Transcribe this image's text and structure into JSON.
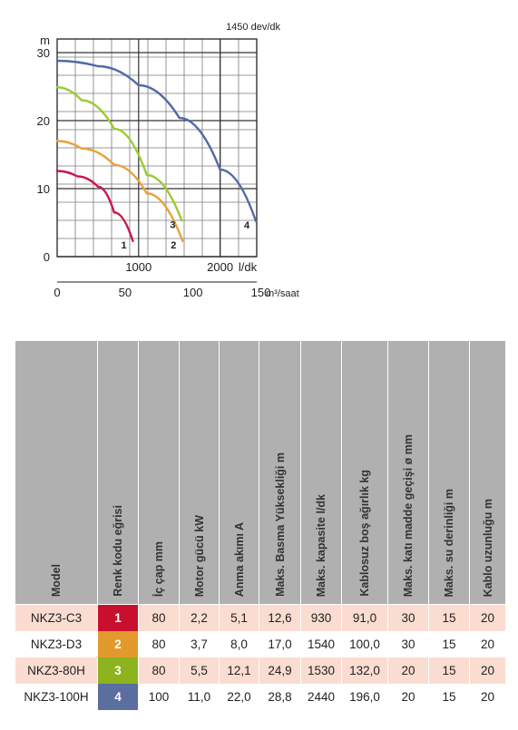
{
  "chart_data": {
    "type": "line",
    "title": "1450 dev/dk",
    "ylabel": "m",
    "xlabel_top": "l/dk",
    "xlabel_bottom": "m³/saat",
    "xlim": [
      0,
      2450
    ],
    "ylim": [
      0,
      32
    ],
    "x_ticks_top": [
      "1000",
      "2000"
    ],
    "x_tick_top_values": [
      1000,
      2000
    ],
    "x_ticks_bottom": [
      "0",
      "50",
      "100",
      "150"
    ],
    "x_tick_bottom_values": [
      0,
      833.33,
      1666.67,
      2500
    ],
    "y_ticks": [
      "0",
      "10",
      "20",
      "30"
    ],
    "y_tick_values": [
      0,
      10,
      20,
      30
    ],
    "grid": true,
    "series": [
      {
        "name": "1",
        "color": "#c8184a",
        "x": [
          0,
          250,
          500,
          700,
          930
        ],
        "y": [
          12.6,
          11.8,
          10.3,
          6.5,
          2.3
        ]
      },
      {
        "name": "2",
        "color": "#e8a23a",
        "x": [
          0,
          300,
          700,
          1100,
          1540
        ],
        "y": [
          17.0,
          15.9,
          13.5,
          9.3,
          2.3
        ]
      },
      {
        "name": "3",
        "color": "#9ccc32",
        "x": [
          0,
          300,
          700,
          1100,
          1530
        ],
        "y": [
          24.9,
          23.0,
          18.8,
          12.0,
          5.3
        ]
      },
      {
        "name": "4",
        "color": "#536aa7",
        "x": [
          0,
          500,
          1000,
          1500,
          2000,
          2440
        ],
        "y": [
          28.8,
          28.0,
          25.2,
          20.4,
          12.8,
          5.2
        ]
      }
    ]
  },
  "table": {
    "headers": [
      "Model",
      "Renk kodu eğrisi",
      "İç çap mm",
      "Motor gücü kW",
      "Anma akımı A",
      "Maks. Basma Yüksekliği m",
      "Maks. kapasite l/dk",
      "Kablosuz boş ağırlık kg",
      "Maks. katı madde geçişi ø mm",
      "Maks. su derinliği m",
      "Kablo uzunluğu m"
    ],
    "rows": [
      {
        "model": "NKZ3-C3",
        "code": "1",
        "code_color": "#c8102e",
        "cells": [
          "80",
          "2,2",
          "5,1",
          "12,6",
          "930",
          "91,0",
          "30",
          "15",
          "20"
        ]
      },
      {
        "model": "NKZ3-D3",
        "code": "2",
        "code_color": "#e29a2d",
        "cells": [
          "80",
          "3,7",
          "8,0",
          "17,0",
          "1540",
          "100,0",
          "30",
          "15",
          "20"
        ]
      },
      {
        "model": "NKZ3-80H",
        "code": "3",
        "code_color": "#8db31e",
        "cells": [
          "80",
          "5,5",
          "12,1",
          "24,9",
          "1530",
          "132,0",
          "20",
          "15",
          "20"
        ]
      },
      {
        "model": "NKZ3-100H",
        "code": "4",
        "code_color": "#5a6ea0",
        "cells": [
          "100",
          "11,0",
          "22,0",
          "28,8",
          "2440",
          "196,0",
          "20",
          "15",
          "20"
        ]
      }
    ]
  }
}
